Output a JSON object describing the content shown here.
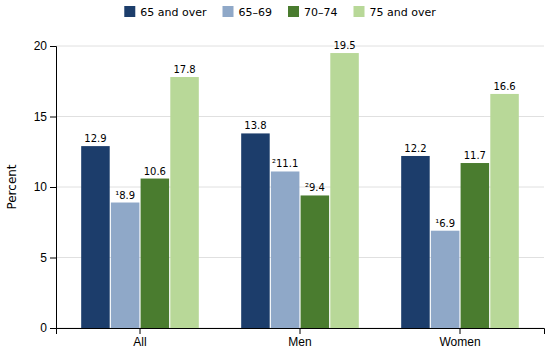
{
  "chart_data": {
    "type": "bar",
    "categories": [
      "All",
      "Men",
      "Women"
    ],
    "series": [
      {
        "name": "65 and over",
        "color": "#1c3d6b",
        "values": [
          12.9,
          13.8,
          12.2
        ],
        "value_labels": [
          "12.9",
          "13.8",
          "12.2"
        ]
      },
      {
        "name": "65–69",
        "color": "#8fa8c8",
        "values": [
          8.9,
          11.1,
          6.9
        ],
        "value_labels": [
          "¹8.9",
          "²11.1",
          "¹6.9"
        ]
      },
      {
        "name": "70–74",
        "color": "#4a7c2f",
        "values": [
          10.6,
          9.4,
          11.7
        ],
        "value_labels": [
          "10.6",
          "²9.4",
          "11.7"
        ]
      },
      {
        "name": "75 and over",
        "color": "#b8d898",
        "values": [
          17.8,
          19.5,
          16.6
        ],
        "value_labels": [
          "17.8",
          "19.5",
          "16.6"
        ]
      }
    ],
    "ylabel": "Percent",
    "ylim": [
      0,
      20
    ],
    "yticks": [
      0,
      5,
      10,
      15,
      20
    ],
    "grid": true,
    "legend": "top",
    "data_labels": true
  }
}
